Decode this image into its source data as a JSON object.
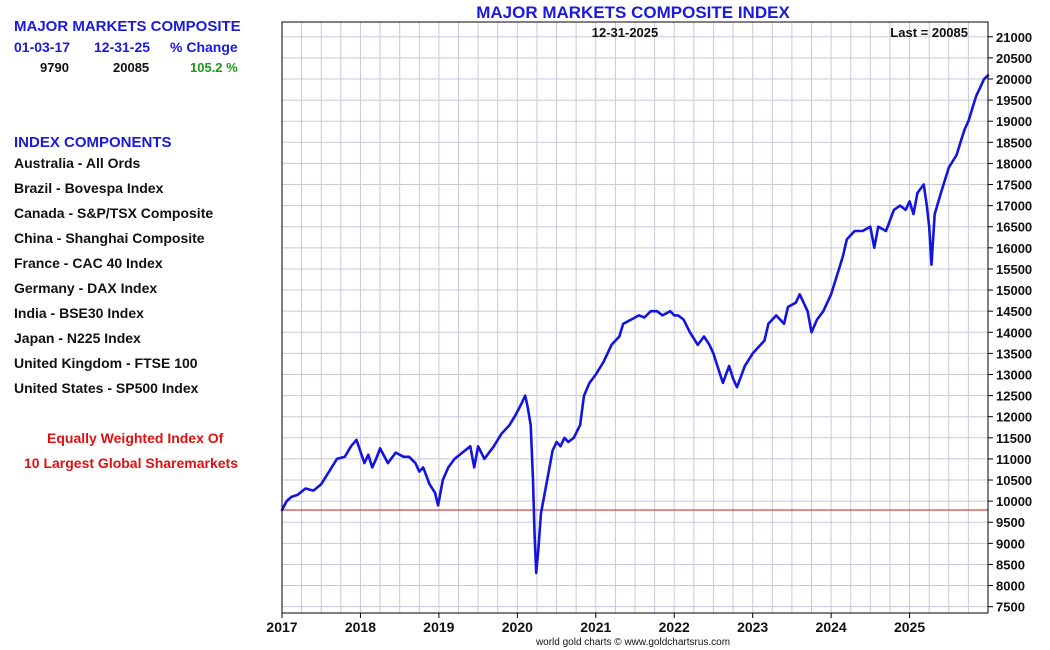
{
  "left_panel": {
    "composite_title": "MAJOR MARKETS COMPOSITE",
    "headers": [
      "01-03-17",
      "12-31-25",
      "% Change"
    ],
    "values": [
      "9790",
      "20085",
      "105.2 %"
    ],
    "components_title": "INDEX COMPONENTS",
    "components": [
      "Australia - All Ords",
      "Brazil - Bovespa Index",
      "Canada - S&P/TSX Composite",
      "China - Shanghai Composite",
      "France - CAC 40 Index",
      "Germany - DAX Index",
      "India - BSE30 Index",
      "Japan - N225 Index",
      "United Kingdom - FTSE 100",
      "United States - SP500 Index"
    ],
    "note_line1": "Equally Weighted Index Of",
    "note_line2": "10 Largest Global Sharemarkets"
  },
  "credit": "world gold charts © www.goldchartsrus.com",
  "colors": {
    "series": "#1414e0",
    "baseline": "#d01010",
    "grid": "#c8c8dc",
    "title": "#1a1adc"
  },
  "chart_data": {
    "type": "line",
    "title": "MAJOR MARKETS COMPOSITE INDEX",
    "date_label": "12-31-2025",
    "last_label": "Last = 20085",
    "xlabel": "",
    "ylabel": "",
    "x_range": [
      2017.0,
      2026.0
    ],
    "ylim": [
      7350,
      21350
    ],
    "y_ticks": [
      7500,
      8000,
      8500,
      9000,
      9500,
      10000,
      10500,
      11000,
      11500,
      12000,
      12500,
      13000,
      13500,
      14000,
      14500,
      15000,
      15500,
      16000,
      16500,
      17000,
      17500,
      18000,
      18500,
      19000,
      19500,
      20000,
      20500,
      21000
    ],
    "x_ticks": [
      2017,
      2018,
      2019,
      2020,
      2021,
      2022,
      2023,
      2024,
      2025
    ],
    "x_tick_labels": [
      "2017",
      "2018",
      "2019",
      "2020",
      "2021",
      "2022",
      "2023",
      "2024",
      "2025"
    ],
    "reference_line": 9790,
    "grid": true,
    "series": [
      {
        "x": [
          2017.0,
          2017.06,
          2017.12,
          2017.2,
          2017.3,
          2017.4,
          2017.5,
          2017.6,
          2017.7,
          2017.8,
          2017.88,
          2017.95,
          2018.05,
          2018.1,
          2018.15,
          2018.2,
          2018.25,
          2018.35,
          2018.45,
          2018.55,
          2018.62,
          2018.7,
          2018.75,
          2018.8,
          2018.88,
          2018.95,
          2018.99,
          2019.05,
          2019.12,
          2019.2,
          2019.3,
          2019.4,
          2019.45,
          2019.5,
          2019.58,
          2019.62,
          2019.7,
          2019.8,
          2019.9,
          2019.98,
          2020.05,
          2020.1,
          2020.13,
          2020.17,
          2020.2,
          2020.22,
          2020.24,
          2020.27,
          2020.3,
          2020.35,
          2020.4,
          2020.45,
          2020.5,
          2020.55,
          2020.6,
          2020.65,
          2020.72,
          2020.8,
          2020.85,
          2020.92,
          2021.0,
          2021.1,
          2021.2,
          2021.3,
          2021.35,
          2021.45,
          2021.55,
          2021.62,
          2021.7,
          2021.78,
          2021.85,
          2021.95,
          2022.0,
          2022.05,
          2022.12,
          2022.2,
          2022.3,
          2022.38,
          2022.45,
          2022.5,
          2022.55,
          2022.62,
          2022.7,
          2022.75,
          2022.8,
          2022.9,
          2023.0,
          2023.1,
          2023.15,
          2023.2,
          2023.3,
          2023.4,
          2023.45,
          2023.55,
          2023.6,
          2023.7,
          2023.75,
          2023.82,
          2023.9,
          2024.0,
          2024.1,
          2024.15,
          2024.2,
          2024.3,
          2024.4,
          2024.5,
          2024.55,
          2024.6,
          2024.7,
          2024.8,
          2024.88,
          2024.95,
          2025.0,
          2025.05,
          2025.1,
          2025.18,
          2025.22,
          2025.25,
          2025.28,
          2025.32,
          2025.4,
          2025.5,
          2025.6,
          2025.65,
          2025.7,
          2025.75,
          2025.8,
          2025.85,
          2025.9,
          2025.95,
          2026.0
        ],
        "values": [
          9790,
          10000,
          10100,
          10150,
          10300,
          10250,
          10400,
          10700,
          11000,
          11050,
          11300,
          11450,
          10900,
          11100,
          10800,
          11000,
          11250,
          10900,
          11150,
          11050,
          11050,
          10900,
          10700,
          10800,
          10400,
          10200,
          9900,
          10500,
          10800,
          11000,
          11150,
          11300,
          10800,
          11300,
          11000,
          11100,
          11300,
          11600,
          11800,
          12050,
          12300,
          12500,
          12250,
          11800,
          10500,
          9200,
          8300,
          8900,
          9700,
          10200,
          10700,
          11200,
          11400,
          11300,
          11500,
          11400,
          11500,
          11800,
          12500,
          12800,
          13000,
          13300,
          13700,
          13900,
          14200,
          14300,
          14400,
          14350,
          14500,
          14500,
          14400,
          14500,
          14400,
          14400,
          14300,
          14000,
          13700,
          13900,
          13700,
          13500,
          13200,
          12800,
          13200,
          12900,
          12700,
          13200,
          13500,
          13700,
          13800,
          14200,
          14400,
          14200,
          14600,
          14700,
          14900,
          14500,
          14000,
          14300,
          14500,
          14900,
          15500,
          15800,
          16200,
          16400,
          16400,
          16500,
          16000,
          16500,
          16400,
          16900,
          17000,
          16900,
          17100,
          16800,
          17300,
          17500,
          17000,
          16500,
          15600,
          16800,
          17300,
          17900,
          18200,
          18500,
          18800,
          19000,
          19300,
          19600,
          19800,
          20000,
          20085
        ]
      }
    ]
  }
}
